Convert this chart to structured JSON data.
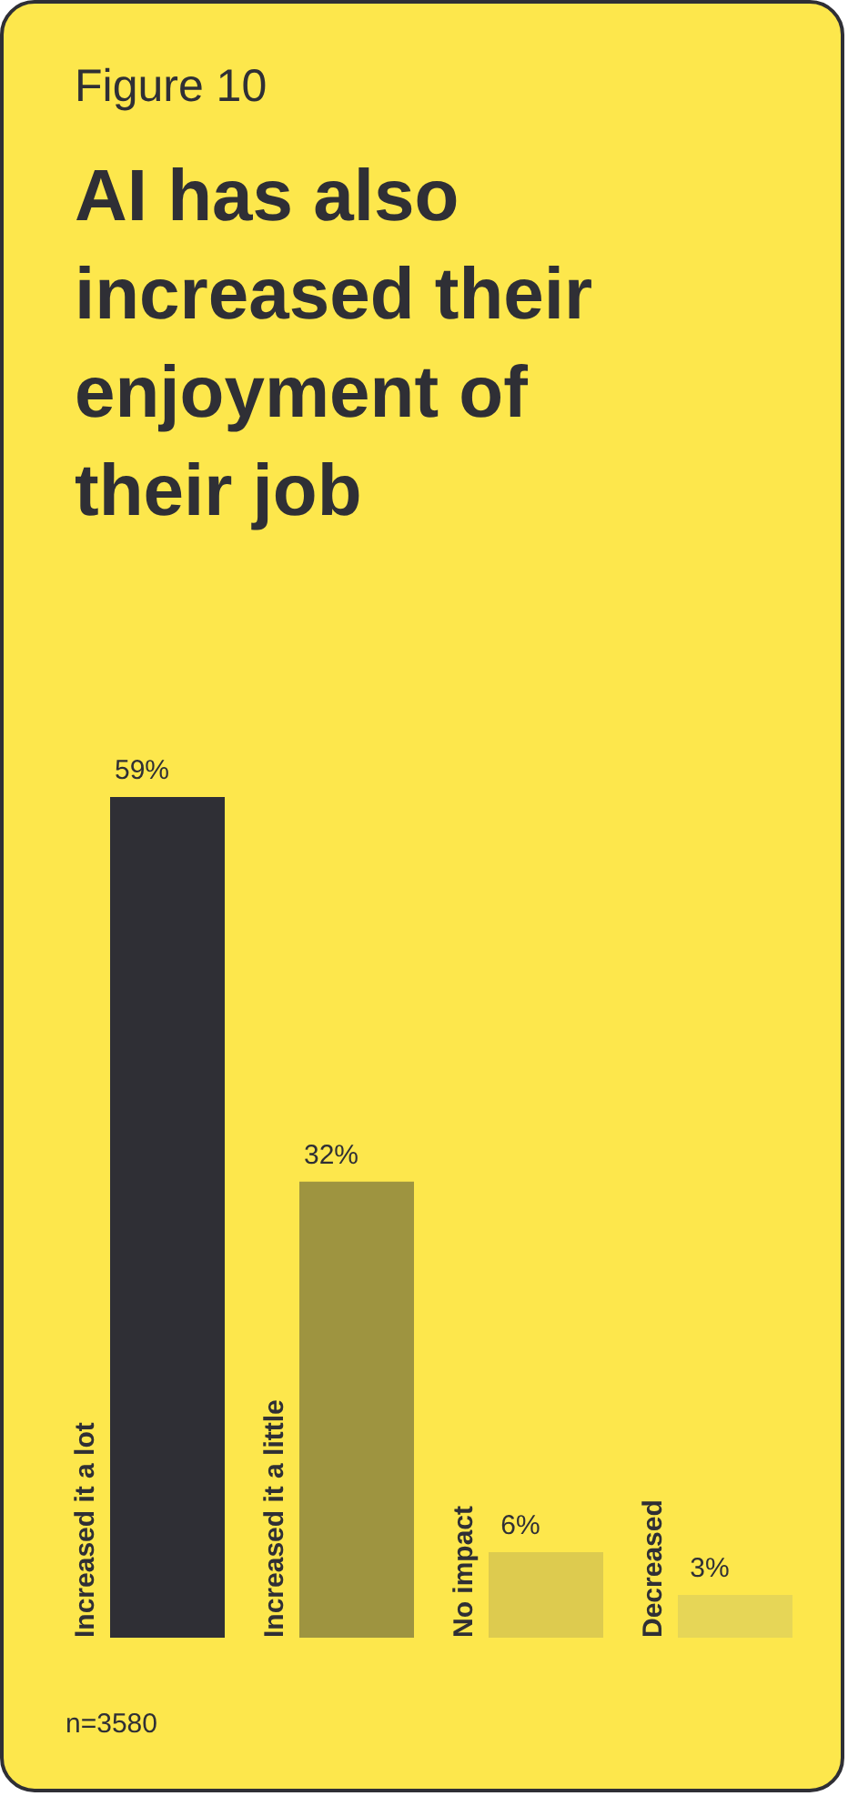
{
  "chart_data": {
    "type": "bar",
    "subtitle": "Figure 10",
    "title": "AI has also increased their enjoyment of their job",
    "categories": [
      "Increased it a lot",
      "Increased it a little",
      "No impact",
      "Decreased"
    ],
    "values": [
      59,
      32,
      6,
      3
    ],
    "colors": [
      "#2f2f35",
      "#9e9440",
      "#ddcb4f",
      "#e6d657"
    ],
    "value_labels": [
      "59%",
      "32%",
      "6%",
      "3%"
    ],
    "annotations": [
      "n=3580"
    ]
  }
}
